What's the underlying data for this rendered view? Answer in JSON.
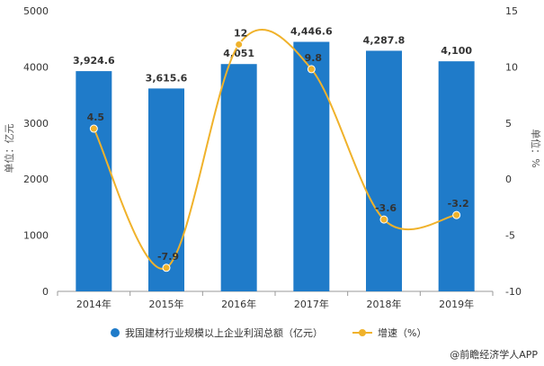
{
  "chart_data": {
    "type": "bar",
    "categories": [
      "2014年",
      "2015年",
      "2016年",
      "2017年",
      "2018年",
      "2019年"
    ],
    "series": [
      {
        "name": "我国建材行业规模以上企业利润总额（亿元）",
        "type": "bar",
        "axis": "left",
        "values": [
          3924.6,
          3615.6,
          4051,
          4446.6,
          4287.8,
          4100
        ],
        "labels": [
          "3,924.6",
          "3,615.6",
          "4,051",
          "4,446.6",
          "4,287.8",
          "4,100"
        ],
        "color": "#1f7bc9"
      },
      {
        "name": "增速（%）",
        "type": "line",
        "axis": "right",
        "values": [
          4.5,
          -7.9,
          12,
          9.8,
          -3.6,
          -3.2
        ],
        "labels": [
          "4.5",
          "-7.9",
          "12",
          "9.8",
          "-3.6",
          "-3.2"
        ],
        "color": "#f0b22b"
      }
    ],
    "ylabel": "单位：亿元",
    "y2label": "单位：%",
    "ylim": [
      0,
      5000
    ],
    "yticks": [
      "0",
      "1000",
      "2000",
      "3000",
      "4000",
      "5000"
    ],
    "y2lim": [
      -10,
      15
    ],
    "y2ticks": [
      "-10",
      "-5",
      "0",
      "5",
      "10",
      "15"
    ],
    "grid": false,
    "legend_position": "bottom"
  },
  "source": "@前瞻经济学人APP"
}
